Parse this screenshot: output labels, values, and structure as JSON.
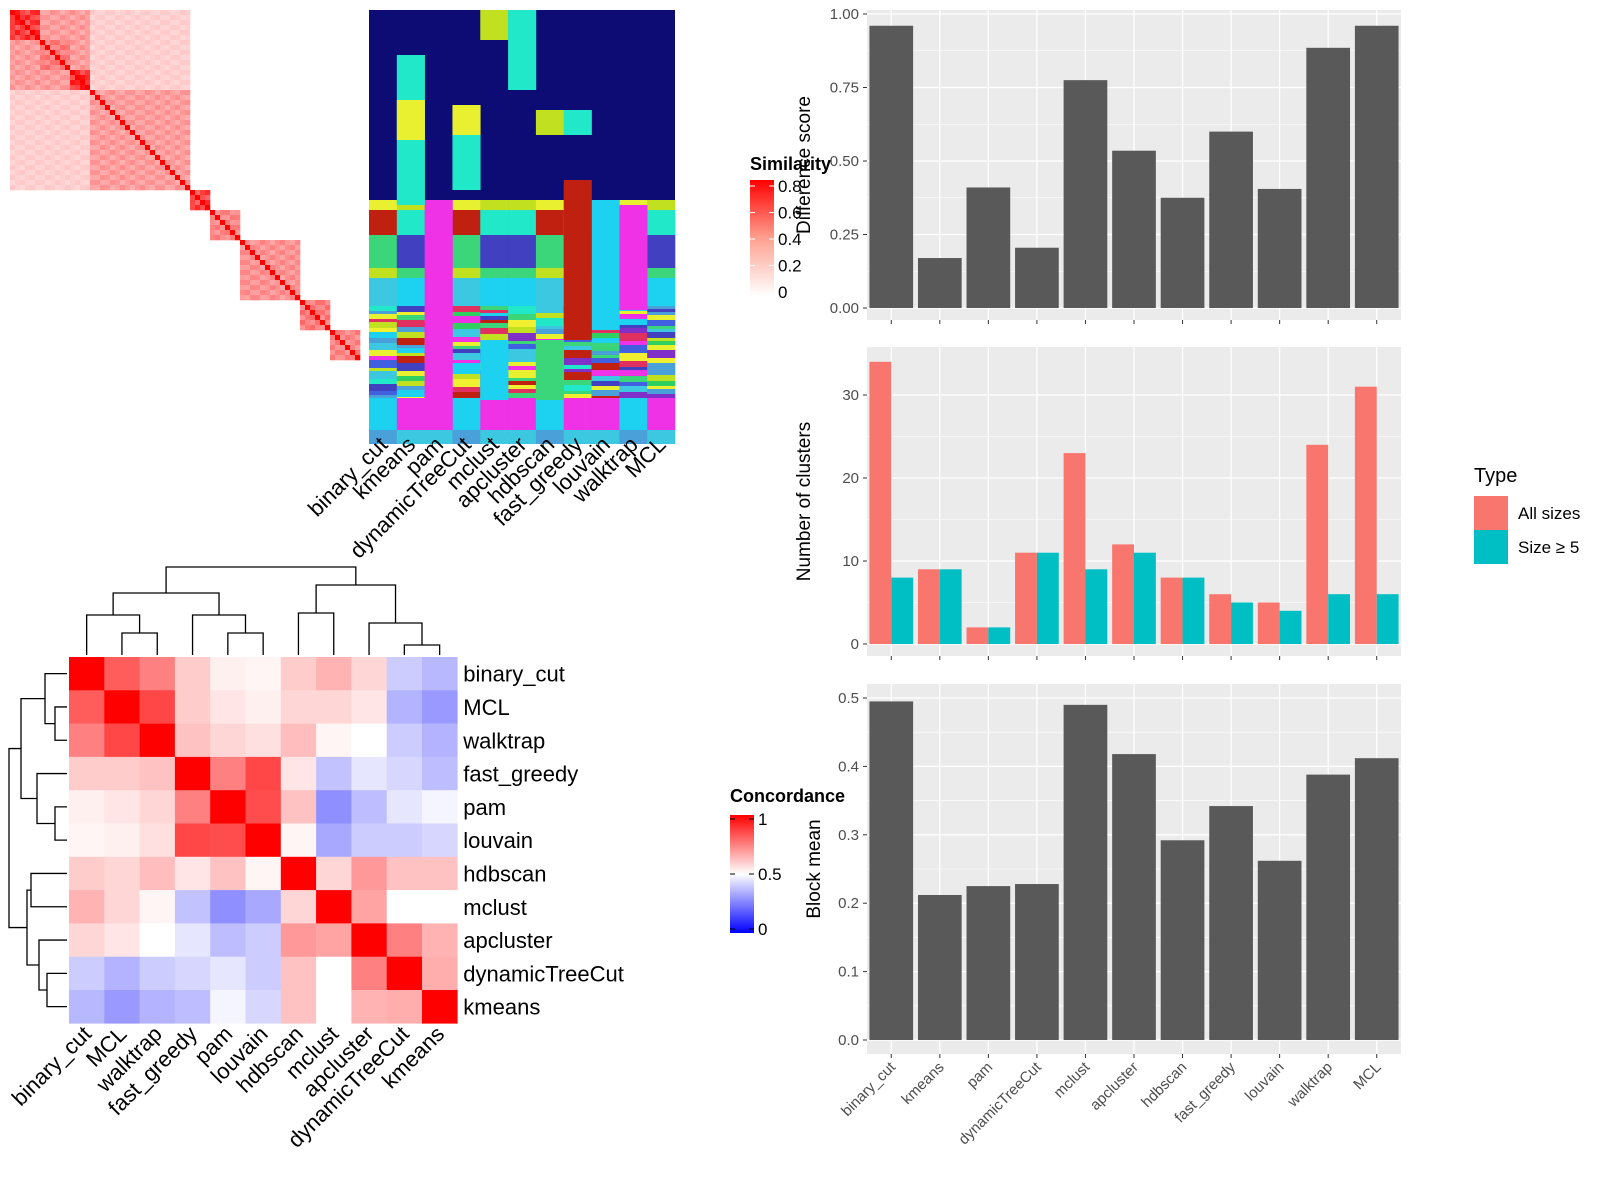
{
  "methods": [
    "binary_cut",
    "kmeans",
    "pam",
    "dynamicTreeCut",
    "mclust",
    "apcluster",
    "hdbscan",
    "fast_greedy",
    "louvain",
    "walktrap",
    "MCL"
  ],
  "colors": {
    "bar_gray": "#595959",
    "panel_bg": "#ebebeb",
    "grid": "#ffffff",
    "all_sizes": "#f8766d",
    "size_ge_5": "#00bfc4",
    "heat_high": "#ff0000",
    "heat_low": "#0000ff"
  },
  "similarity_legend": {
    "title": "Similarity",
    "ticks": [
      "0.8",
      "0.6",
      "0.4",
      "0.2",
      "0"
    ]
  },
  "concordance_legend": {
    "title": "Concordance",
    "ticks": [
      "1",
      "0.5",
      "0"
    ]
  },
  "type_legend": {
    "title": "Type",
    "items": [
      "All sizes",
      "Size ≥ 5"
    ]
  },
  "concordance": {
    "order": [
      "binary_cut",
      "MCL",
      "walktrap",
      "fast_greedy",
      "pam",
      "louvain",
      "hdbscan",
      "mclust",
      "apcluster",
      "dynamicTreeCut",
      "kmeans"
    ],
    "matrix": [
      [
        1.0,
        0.82,
        0.75,
        0.6,
        0.53,
        0.52,
        0.6,
        0.65,
        0.58,
        0.4,
        0.36
      ],
      [
        0.82,
        1.0,
        0.86,
        0.6,
        0.55,
        0.53,
        0.58,
        0.58,
        0.55,
        0.35,
        0.3
      ],
      [
        0.75,
        0.86,
        1.0,
        0.62,
        0.58,
        0.56,
        0.63,
        0.52,
        0.5,
        0.4,
        0.35
      ],
      [
        0.6,
        0.6,
        0.62,
        1.0,
        0.75,
        0.86,
        0.55,
        0.38,
        0.45,
        0.42,
        0.37
      ],
      [
        0.53,
        0.55,
        0.58,
        0.75,
        1.0,
        0.85,
        0.62,
        0.28,
        0.37,
        0.45,
        0.48
      ],
      [
        0.52,
        0.53,
        0.56,
        0.86,
        0.85,
        1.0,
        0.52,
        0.33,
        0.4,
        0.4,
        0.42
      ],
      [
        0.6,
        0.58,
        0.63,
        0.55,
        0.62,
        0.52,
        1.0,
        0.58,
        0.7,
        0.62,
        0.62
      ],
      [
        0.65,
        0.58,
        0.52,
        0.38,
        0.28,
        0.33,
        0.58,
        1.0,
        0.68,
        0.5,
        0.5
      ],
      [
        0.58,
        0.55,
        0.5,
        0.45,
        0.37,
        0.4,
        0.7,
        0.68,
        1.0,
        0.75,
        0.65
      ],
      [
        0.4,
        0.35,
        0.4,
        0.42,
        0.45,
        0.4,
        0.62,
        0.5,
        0.75,
        1.0,
        0.66
      ],
      [
        0.36,
        0.3,
        0.35,
        0.37,
        0.48,
        0.42,
        0.62,
        0.5,
        0.65,
        0.66,
        1.0
      ]
    ]
  },
  "chart_data": [
    {
      "type": "bar",
      "categories": [
        "binary_cut",
        "kmeans",
        "pam",
        "dynamicTreeCut",
        "mclust",
        "apcluster",
        "hdbscan",
        "fast_greedy",
        "louvain",
        "walktrap",
        "MCL"
      ],
      "values": [
        0.96,
        0.17,
        0.41,
        0.205,
        0.775,
        0.535,
        0.375,
        0.6,
        0.405,
        0.885,
        0.96
      ],
      "xlabel": "",
      "ylabel": "Difference score",
      "ylim": [
        0,
        1.0
      ],
      "yticks": [
        "0.00",
        "0.25",
        "0.50",
        "0.75",
        "1.00"
      ],
      "ytick_values": [
        0,
        0.25,
        0.5,
        0.75,
        1.0
      ]
    },
    {
      "type": "bar",
      "categories": [
        "binary_cut",
        "kmeans",
        "pam",
        "dynamicTreeCut",
        "mclust",
        "apcluster",
        "hdbscan",
        "fast_greedy",
        "louvain",
        "walktrap",
        "MCL"
      ],
      "series": [
        {
          "name": "All sizes",
          "values": [
            34,
            9,
            2,
            11,
            23,
            12,
            8,
            6,
            5,
            24,
            31
          ]
        },
        {
          "name": "Size ≥ 5",
          "values": [
            8,
            9,
            2,
            11,
            9,
            11,
            8,
            5,
            4,
            6,
            6
          ]
        }
      ],
      "xlabel": "",
      "ylabel": "Number of clusters",
      "ylim": [
        0,
        35
      ],
      "yticks": [
        "0",
        "10",
        "20",
        "30"
      ],
      "ytick_values": [
        0,
        10,
        20,
        30
      ],
      "legend": "right"
    },
    {
      "type": "bar",
      "categories": [
        "binary_cut",
        "kmeans",
        "pam",
        "dynamicTreeCut",
        "mclust",
        "apcluster",
        "hdbscan",
        "fast_greedy",
        "louvain",
        "walktrap",
        "MCL"
      ],
      "values": [
        0.495,
        0.212,
        0.225,
        0.228,
        0.49,
        0.418,
        0.292,
        0.342,
        0.262,
        0.388,
        0.412
      ],
      "xlabel": "",
      "ylabel": "Block mean",
      "ylim": [
        0,
        0.5
      ],
      "yticks": [
        "0.0",
        "0.1",
        "0.2",
        "0.3",
        "0.4",
        "0.5"
      ],
      "ytick_values": [
        0,
        0.1,
        0.2,
        0.3,
        0.4,
        0.5
      ]
    }
  ]
}
